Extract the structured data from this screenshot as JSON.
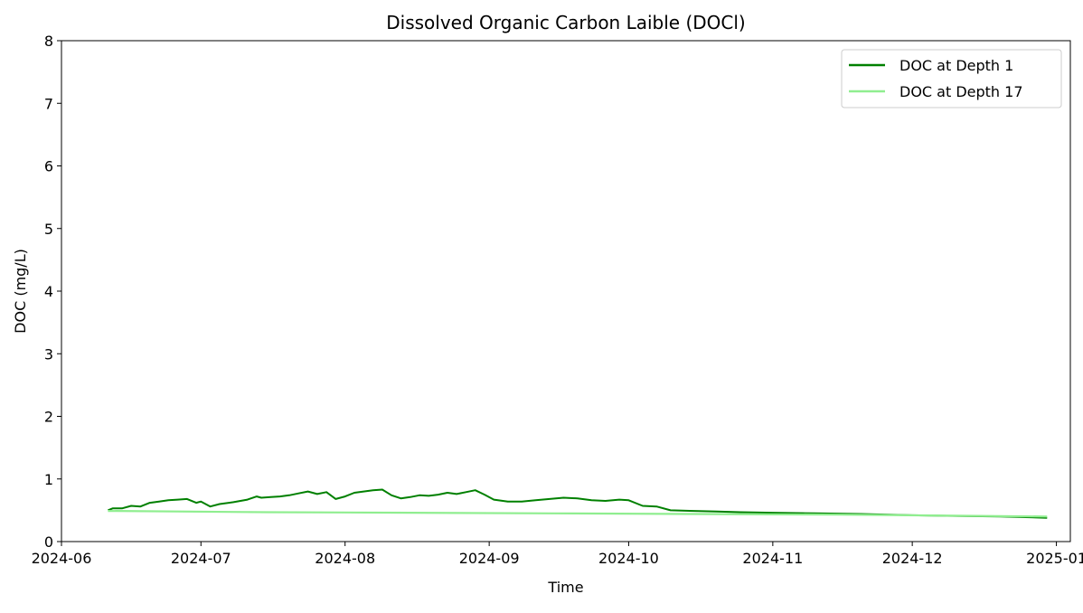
{
  "chart_data": {
    "type": "line",
    "title": "Dissolved Organic Carbon Laible (DOCl)",
    "xlabel": "Time",
    "ylabel": "DOC (mg/L)",
    "xlim": [
      "2024-06-01",
      "2025-01-04"
    ],
    "ylim": [
      0,
      8
    ],
    "grid": false,
    "legend_position": "top-right",
    "x_tick_labels": [
      "2024-06",
      "2024-07",
      "2024-08",
      "2024-09",
      "2024-10",
      "2024-11",
      "2024-12",
      "2025-01"
    ],
    "x_ticks": [
      "2024-06-01",
      "2024-07-01",
      "2024-08-01",
      "2024-09-01",
      "2024-10-01",
      "2024-11-01",
      "2024-12-01",
      "2025-01-01"
    ],
    "y_ticks": [
      0,
      1,
      2,
      3,
      4,
      5,
      6,
      7,
      8
    ],
    "y_tick_labels": [
      "0",
      "1",
      "2",
      "3",
      "4",
      "5",
      "6",
      "7",
      "8"
    ],
    "series": [
      {
        "name": "DOC at Depth 1",
        "color": "#008000",
        "x": [
          "2024-06-11",
          "2024-06-12",
          "2024-06-14",
          "2024-06-16",
          "2024-06-18",
          "2024-06-20",
          "2024-06-22",
          "2024-06-24",
          "2024-06-26",
          "2024-06-28",
          "2024-06-30",
          "2024-07-01",
          "2024-07-03",
          "2024-07-05",
          "2024-07-08",
          "2024-07-11",
          "2024-07-13",
          "2024-07-14",
          "2024-07-16",
          "2024-07-18",
          "2024-07-20",
          "2024-07-22",
          "2024-07-24",
          "2024-07-26",
          "2024-07-28",
          "2024-07-30",
          "2024-08-01",
          "2024-08-03",
          "2024-08-05",
          "2024-08-07",
          "2024-08-09",
          "2024-08-11",
          "2024-08-13",
          "2024-08-15",
          "2024-08-17",
          "2024-08-19",
          "2024-08-21",
          "2024-08-23",
          "2024-08-25",
          "2024-08-27",
          "2024-08-29",
          "2024-08-31",
          "2024-09-02",
          "2024-09-05",
          "2024-09-08",
          "2024-09-11",
          "2024-09-14",
          "2024-09-17",
          "2024-09-20",
          "2024-09-23",
          "2024-09-26",
          "2024-09-29",
          "2024-10-01",
          "2024-10-04",
          "2024-10-07",
          "2024-10-10",
          "2024-10-15",
          "2024-10-20",
          "2024-10-25",
          "2024-11-01",
          "2024-11-10",
          "2024-11-20",
          "2024-12-01",
          "2024-12-10",
          "2024-12-20",
          "2024-12-30"
        ],
        "y": [
          0.5,
          0.53,
          0.53,
          0.57,
          0.56,
          0.62,
          0.64,
          0.66,
          0.67,
          0.68,
          0.62,
          0.64,
          0.56,
          0.6,
          0.63,
          0.67,
          0.72,
          0.7,
          0.71,
          0.72,
          0.74,
          0.77,
          0.8,
          0.76,
          0.79,
          0.68,
          0.72,
          0.78,
          0.8,
          0.82,
          0.83,
          0.74,
          0.69,
          0.71,
          0.74,
          0.73,
          0.75,
          0.78,
          0.76,
          0.79,
          0.82,
          0.75,
          0.67,
          0.64,
          0.64,
          0.66,
          0.68,
          0.7,
          0.69,
          0.66,
          0.65,
          0.67,
          0.66,
          0.57,
          0.56,
          0.5,
          0.49,
          0.48,
          0.47,
          0.46,
          0.45,
          0.44,
          0.42,
          0.41,
          0.4,
          0.38
        ]
      },
      {
        "name": "DOC at Depth 17",
        "color": "#90ee90",
        "x": [
          "2024-06-11",
          "2024-07-15",
          "2024-08-15",
          "2024-09-15",
          "2024-10-15",
          "2024-11-15",
          "2024-12-15",
          "2024-12-30"
        ],
        "y": [
          0.49,
          0.47,
          0.46,
          0.45,
          0.44,
          0.43,
          0.41,
          0.4
        ]
      }
    ]
  }
}
